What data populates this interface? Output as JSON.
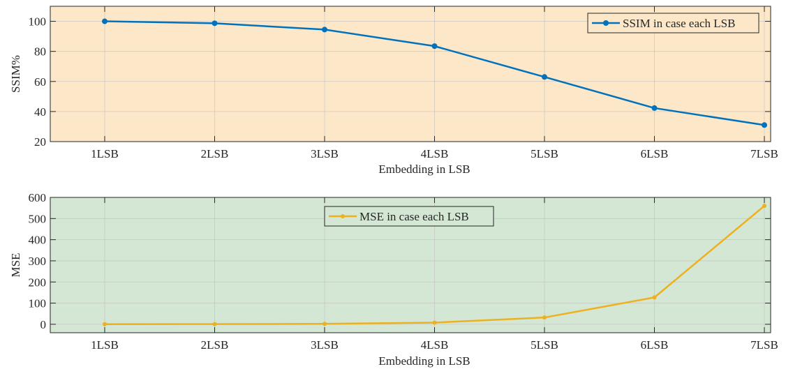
{
  "chart_data": [
    {
      "type": "line",
      "categories": [
        "1LSB",
        "2LSB",
        "3LSB",
        "4LSB",
        "5LSB",
        "6LSB",
        "7LSB"
      ],
      "series": [
        {
          "name": "SSIM in case each LSB",
          "values": [
            100,
            98.7,
            94.5,
            83.5,
            63,
            42.3,
            31
          ],
          "color": "#0072BD"
        }
      ],
      "title": "",
      "xlabel": "Embedding in LSB",
      "ylabel": "SSIM%",
      "ylim": [
        20,
        110
      ],
      "yticks": [
        20,
        40,
        60,
        80,
        100
      ],
      "background": "#FCE8C9",
      "grid": true,
      "legend_position": "top-right"
    },
    {
      "type": "line",
      "categories": [
        "1LSB",
        "2LSB",
        "3LSB",
        "4LSB",
        "5LSB",
        "6LSB",
        "7LSB"
      ],
      "series": [
        {
          "name": "MSE in case each LSB",
          "values": [
            0.3,
            0.8,
            2,
            8,
            32,
            127,
            560
          ],
          "color": "#EDB120"
        }
      ],
      "title": "",
      "xlabel": "Embedding in LSB",
      "ylabel": "MSE",
      "ylim": [
        -40,
        600
      ],
      "yticks": [
        0,
        100,
        200,
        300,
        400,
        500,
        600
      ],
      "background": "#D4E7D5",
      "grid": true,
      "legend_position": "top-center"
    }
  ]
}
